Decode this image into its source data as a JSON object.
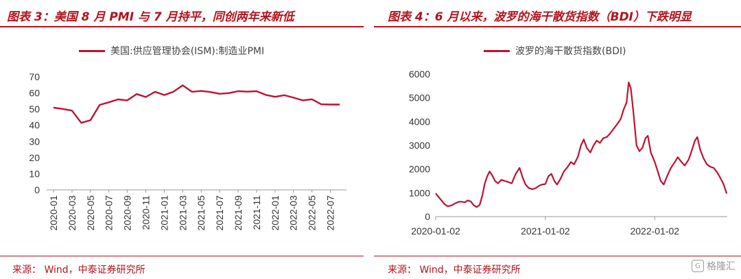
{
  "left": {
    "title": "图表 3：美国 8 月 PMI 与 7 月持平，同创两年来新低",
    "source": "来源：  Wind，中泰证券研究所",
    "chart_data": {
      "type": "line",
      "title": "",
      "xlabel": "",
      "ylabel": "",
      "ylim": [
        0,
        70
      ],
      "yticks": [
        "0",
        "10",
        "20",
        "30",
        "40",
        "50",
        "60",
        "70"
      ],
      "grid": false,
      "legend_position": "top",
      "x": [
        "2020-01",
        "2020-02",
        "2020-03",
        "2020-04",
        "2020-05",
        "2020-06",
        "2020-07",
        "2020-08",
        "2020-09",
        "2020-10",
        "2020-11",
        "2020-12",
        "2021-01",
        "2021-02",
        "2021-03",
        "2021-04",
        "2021-05",
        "2021-06",
        "2021-07",
        "2021-08",
        "2021-09",
        "2021-10",
        "2021-11",
        "2021-12",
        "2022-01",
        "2022-02",
        "2022-03",
        "2022-04",
        "2022-05",
        "2022-06",
        "2022-07",
        "2022-08"
      ],
      "xticks": [
        "2020-01",
        "2020-03",
        "2020-05",
        "2020-07",
        "2020-09",
        "2020-11",
        "2021-01",
        "2021-03",
        "2021-05",
        "2021-07",
        "2021-09",
        "2021-11",
        "2022-01",
        "2022-03",
        "2022-05",
        "2022-07"
      ],
      "series": [
        {
          "name": "美国:供应管理协会(ISM):制造业PMI",
          "values": [
            50.9,
            50.1,
            49.1,
            41.5,
            43.1,
            52.6,
            54.2,
            56.0,
            55.4,
            59.3,
            57.5,
            60.7,
            58.7,
            60.8,
            64.7,
            60.7,
            61.2,
            60.6,
            59.5,
            59.9,
            61.1,
            60.8,
            61.1,
            58.8,
            57.6,
            58.6,
            57.1,
            55.4,
            56.1,
            53.0,
            52.8,
            52.8
          ],
          "color": "#c0102e"
        }
      ]
    }
  },
  "right": {
    "title": "图表 4：6 月以来，波罗的海干散货指数（BDI）下跌明显",
    "source": "来源：  Wind，中泰证券研究所",
    "watermark": "格隆汇",
    "chart_data": {
      "type": "line",
      "title": "",
      "xlabel": "",
      "ylabel": "",
      "ylim": [
        0,
        6000
      ],
      "yticks": [
        "0",
        "1000",
        "2000",
        "3000",
        "4000",
        "5000",
        "6000"
      ],
      "grid": false,
      "legend_position": "top",
      "xlim": [
        "2020-01-02",
        "2022-09-01"
      ],
      "xticks": [
        "2020-01-02",
        "2021-01-02",
        "2022-01-02"
      ],
      "series": [
        {
          "name": "波罗的海干散货指数(BDI)",
          "color": "#c0102e",
          "points": [
            [
              "2020-01-02",
              976
            ],
            [
              "2020-01-10",
              850
            ],
            [
              "2020-01-20",
              700
            ],
            [
              "2020-02-01",
              520
            ],
            [
              "2020-02-12",
              430
            ],
            [
              "2020-02-25",
              480
            ],
            [
              "2020-03-06",
              550
            ],
            [
              "2020-03-18",
              620
            ],
            [
              "2020-03-28",
              630
            ],
            [
              "2020-04-08",
              600
            ],
            [
              "2020-04-18",
              680
            ],
            [
              "2020-04-28",
              640
            ],
            [
              "2020-05-08",
              480
            ],
            [
              "2020-05-18",
              400
            ],
            [
              "2020-05-28",
              500
            ],
            [
              "2020-06-06",
              900
            ],
            [
              "2020-06-14",
              1400
            ],
            [
              "2020-06-22",
              1700
            ],
            [
              "2020-06-30",
              1900
            ],
            [
              "2020-07-08",
              1750
            ],
            [
              "2020-07-18",
              1500
            ],
            [
              "2020-07-28",
              1400
            ],
            [
              "2020-08-08",
              1550
            ],
            [
              "2020-08-20",
              1500
            ],
            [
              "2020-09-01",
              1450
            ],
            [
              "2020-09-12",
              1400
            ],
            [
              "2020-09-25",
              1800
            ],
            [
              "2020-10-08",
              2050
            ],
            [
              "2020-10-18",
              1650
            ],
            [
              "2020-10-28",
              1350
            ],
            [
              "2020-11-08",
              1200
            ],
            [
              "2020-11-20",
              1150
            ],
            [
              "2020-12-01",
              1200
            ],
            [
              "2020-12-12",
              1300
            ],
            [
              "2020-12-22",
              1350
            ],
            [
              "2021-01-02",
              1370
            ],
            [
              "2021-01-12",
              1700
            ],
            [
              "2021-01-22",
              1800
            ],
            [
              "2021-02-01",
              1500
            ],
            [
              "2021-02-10",
              1350
            ],
            [
              "2021-02-22",
              1600
            ],
            [
              "2021-03-05",
              1900
            ],
            [
              "2021-03-18",
              2100
            ],
            [
              "2021-03-28",
              2300
            ],
            [
              "2021-04-08",
              2200
            ],
            [
              "2021-04-20",
              2500
            ],
            [
              "2021-05-01",
              3000
            ],
            [
              "2021-05-10",
              3250
            ],
            [
              "2021-05-20",
              2900
            ],
            [
              "2021-06-01",
              2700
            ],
            [
              "2021-06-12",
              3000
            ],
            [
              "2021-06-22",
              3200
            ],
            [
              "2021-07-03",
              3100
            ],
            [
              "2021-07-14",
              3300
            ],
            [
              "2021-07-26",
              3350
            ],
            [
              "2021-08-06",
              3500
            ],
            [
              "2021-08-18",
              3700
            ],
            [
              "2021-08-30",
              3900
            ],
            [
              "2021-09-10",
              4100
            ],
            [
              "2021-09-20",
              4500
            ],
            [
              "2021-09-30",
              4800
            ],
            [
              "2021-10-07",
              5650
            ],
            [
              "2021-10-14",
              5400
            ],
            [
              "2021-10-22",
              4500
            ],
            [
              "2021-11-02",
              3000
            ],
            [
              "2021-11-12",
              2750
            ],
            [
              "2021-11-22",
              2900
            ],
            [
              "2021-12-02",
              3300
            ],
            [
              "2021-12-10",
              3400
            ],
            [
              "2021-12-20",
              2700
            ],
            [
              "2022-01-02",
              2300
            ],
            [
              "2022-01-12",
              1900
            ],
            [
              "2022-01-22",
              1500
            ],
            [
              "2022-02-01",
              1350
            ],
            [
              "2022-02-12",
              1700
            ],
            [
              "2022-02-25",
              2050
            ],
            [
              "2022-03-10",
              2300
            ],
            [
              "2022-03-20",
              2500
            ],
            [
              "2022-04-01",
              2300
            ],
            [
              "2022-04-12",
              2150
            ],
            [
              "2022-04-25",
              2400
            ],
            [
              "2022-05-06",
              2800
            ],
            [
              "2022-05-16",
              3200
            ],
            [
              "2022-05-24",
              3350
            ],
            [
              "2022-06-03",
              2800
            ],
            [
              "2022-06-14",
              2450
            ],
            [
              "2022-06-25",
              2200
            ],
            [
              "2022-07-06",
              2100
            ],
            [
              "2022-07-18",
              2050
            ],
            [
              "2022-07-30",
              1850
            ],
            [
              "2022-08-10",
              1600
            ],
            [
              "2022-08-20",
              1350
            ],
            [
              "2022-08-30",
              970
            ]
          ]
        }
      ]
    }
  }
}
